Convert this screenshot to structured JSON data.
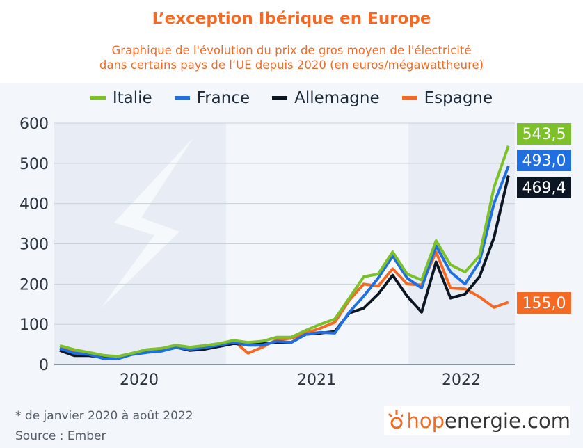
{
  "title": "L’exception Ibérique en Europe",
  "subtitle_line1": "Graphique de l'évolution du prix de gros moyen de l'électricité",
  "subtitle_line2": "dans certains pays de l’UE depuis 2020 (en euros/mégawattheure)",
  "footnote": "* de janvier 2020 à août 2022",
  "source": "Source : Ember",
  "logo": {
    "part1": "hop",
    "part2": "energie.com"
  },
  "chart_data": {
    "type": "line",
    "x_start": "2020-01",
    "x_end": "2022-08",
    "frequency": "monthly",
    "x_tick_labels": [
      "2020",
      "2021",
      "2022"
    ],
    "ylim": [
      0,
      600
    ],
    "y_ticks": [
      0,
      100,
      200,
      300,
      400,
      500,
      600
    ],
    "grid": true,
    "legend": "top",
    "series": [
      {
        "name": "Italie",
        "color": "#7cc12a",
        "end_label": "543,5",
        "values": [
          47,
          37,
          30,
          23,
          20,
          28,
          37,
          40,
          48,
          43,
          47,
          52,
          60,
          55,
          58,
          68,
          68,
          85,
          100,
          113,
          165,
          218,
          225,
          280,
          225,
          210,
          308,
          248,
          230,
          270,
          440,
          543.5
        ]
      },
      {
        "name": "France",
        "color": "#1f6fe0",
        "end_label": "493,0",
        "values": [
          40,
          28,
          25,
          15,
          14,
          25,
          30,
          33,
          42,
          38,
          42,
          48,
          55,
          48,
          48,
          58,
          55,
          75,
          80,
          78,
          130,
          170,
          215,
          270,
          215,
          190,
          295,
          230,
          200,
          255,
          400,
          493.0
        ]
      },
      {
        "name": "Allemagne",
        "color": "#0c1622",
        "end_label": "469,4",
        "values": [
          35,
          22,
          22,
          18,
          18,
          25,
          30,
          35,
          43,
          35,
          38,
          45,
          52,
          50,
          52,
          55,
          55,
          75,
          78,
          82,
          128,
          140,
          175,
          222,
          170,
          130,
          255,
          165,
          175,
          218,
          315,
          469.4
        ]
      },
      {
        "name": "Espagne",
        "color": "#f46a24",
        "end_label": "155,0",
        "values": [
          42,
          32,
          28,
          22,
          18,
          28,
          33,
          38,
          45,
          40,
          45,
          48,
          60,
          28,
          43,
          62,
          65,
          78,
          90,
          105,
          160,
          200,
          195,
          238,
          200,
          198,
          280,
          190,
          188,
          168,
          142,
          155.0
        ]
      }
    ]
  }
}
